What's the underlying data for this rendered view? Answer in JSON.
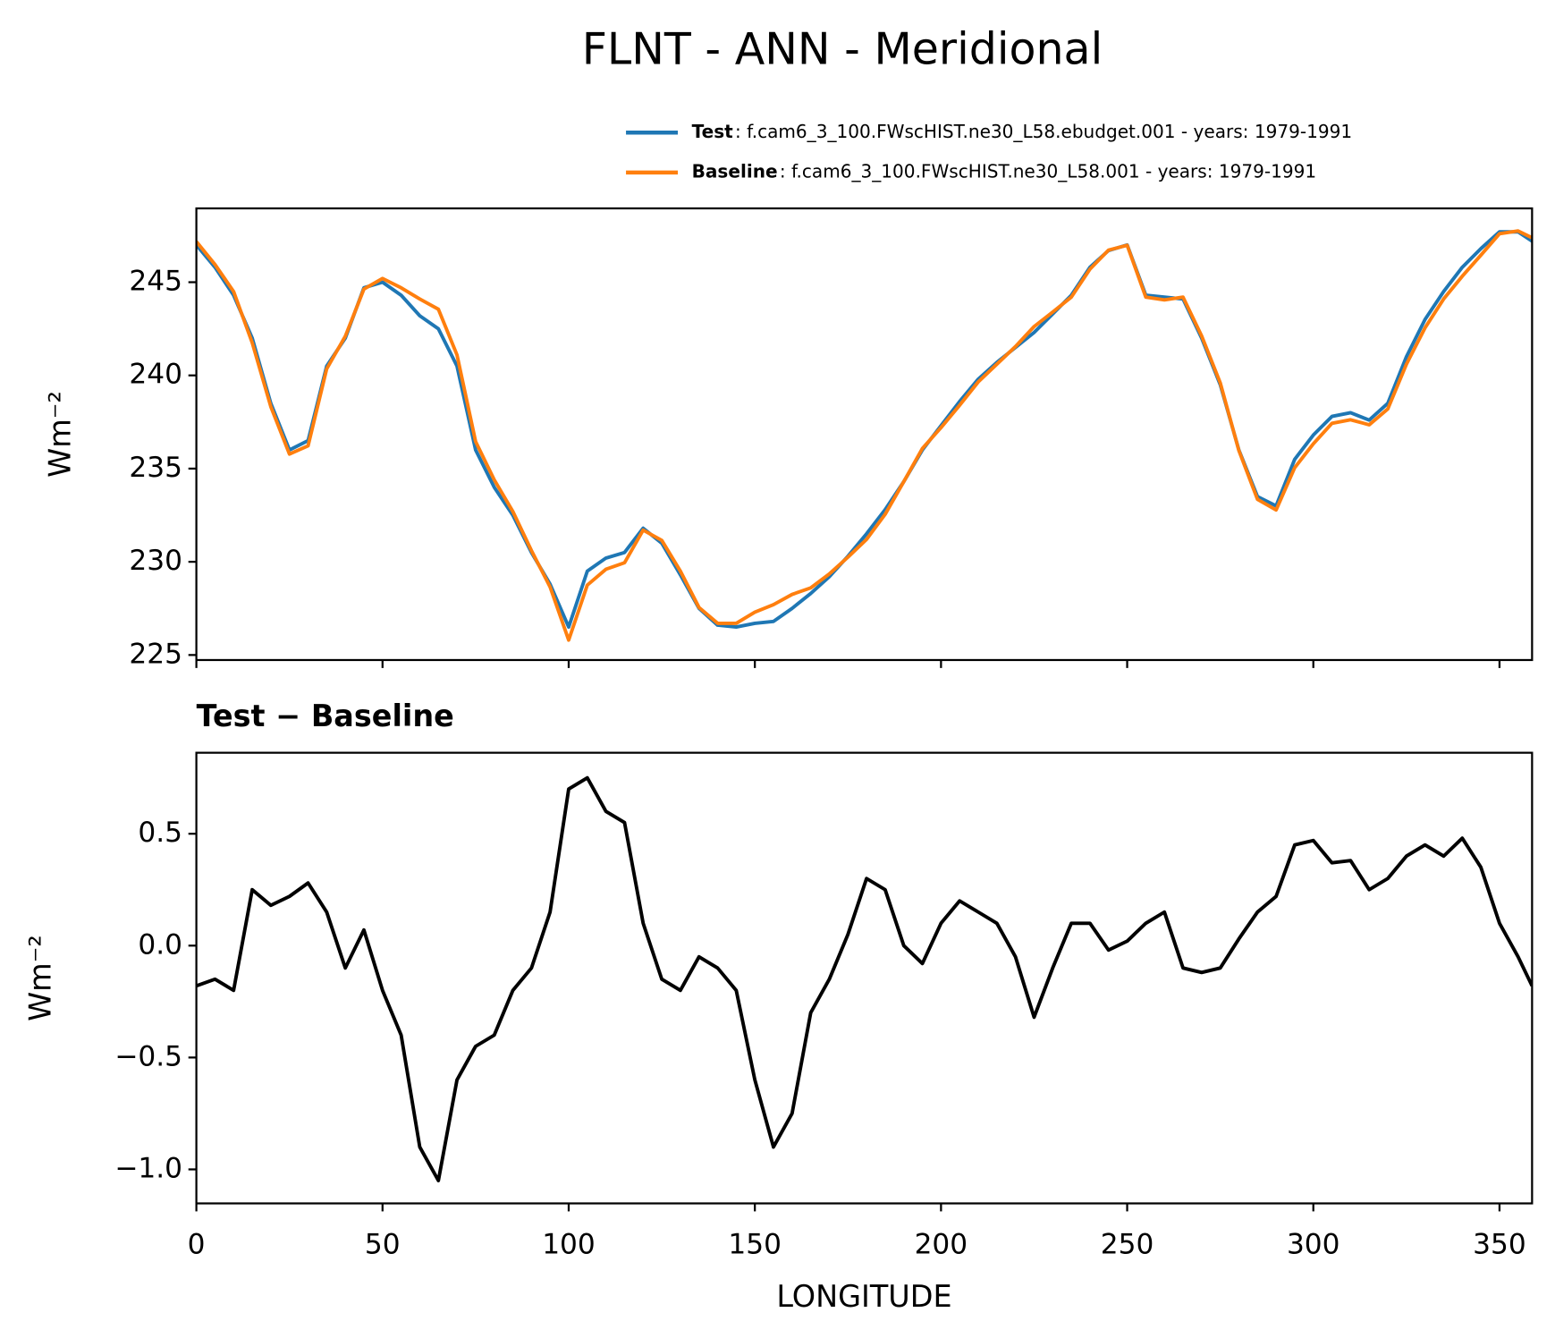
{
  "chart_data": [
    {
      "type": "line",
      "title": "FLNT - ANN - Meridional",
      "ylabel": "Wm⁻²",
      "x": [
        0,
        5,
        10,
        15,
        20,
        25,
        30,
        35,
        40,
        45,
        50,
        55,
        60,
        65,
        70,
        75,
        80,
        85,
        90,
        95,
        100,
        105,
        110,
        115,
        120,
        125,
        130,
        135,
        140,
        145,
        150,
        155,
        160,
        165,
        170,
        175,
        180,
        185,
        190,
        195,
        200,
        205,
        210,
        215,
        220,
        225,
        230,
        235,
        240,
        245,
        250,
        255,
        260,
        265,
        270,
        275,
        280,
        285,
        290,
        295,
        300,
        305,
        310,
        315,
        320,
        325,
        330,
        335,
        340,
        345,
        350,
        355,
        358.75
      ],
      "series": [
        {
          "name": "Test",
          "legend_text": ": f.cam6_3_100.FWscHIST.ne30_L58.ebudget.001 - years: 1979-1991",
          "color": "#1f77b4",
          "values": [
            247.0,
            245.8,
            244.3,
            242.0,
            238.5,
            236.0,
            236.5,
            240.5,
            242.0,
            244.7,
            245.0,
            244.3,
            243.2,
            242.5,
            240.5,
            236.0,
            234.0,
            232.5,
            230.5,
            228.8,
            226.5,
            229.5,
            230.2,
            230.5,
            231.8,
            231.0,
            229.3,
            227.5,
            226.6,
            226.5,
            226.7,
            226.8,
            227.5,
            228.3,
            229.2,
            230.3,
            231.5,
            232.8,
            234.3,
            236.0,
            237.3,
            238.6,
            239.8,
            240.7,
            241.5,
            242.3,
            243.3,
            244.3,
            245.8,
            246.7,
            247.0,
            244.3,
            244.2,
            244.1,
            242.0,
            239.5,
            236.0,
            233.5,
            233.0,
            235.5,
            236.8,
            237.8,
            238.0,
            237.6,
            238.5,
            241.0,
            243.0,
            244.5,
            245.8,
            246.8,
            247.7,
            247.7,
            247.2
          ]
        },
        {
          "name": "Baseline",
          "legend_text": ": f.cam6_3_100.FWscHIST.ne30_L58.001 - years: 1979-1991",
          "color": "#ff7f0e",
          "values": [
            247.18,
            245.95,
            244.5,
            241.75,
            238.32,
            235.78,
            236.22,
            240.35,
            242.1,
            244.63,
            245.2,
            244.7,
            244.1,
            243.55,
            241.1,
            236.45,
            234.4,
            232.7,
            230.6,
            228.65,
            225.8,
            228.75,
            229.6,
            229.95,
            231.7,
            231.15,
            229.5,
            227.55,
            226.7,
            226.7,
            227.3,
            227.7,
            228.25,
            228.6,
            229.35,
            230.25,
            231.2,
            232.55,
            234.3,
            236.08,
            237.2,
            238.4,
            239.65,
            240.6,
            241.55,
            242.62,
            243.4,
            244.2,
            245.7,
            246.72,
            246.98,
            244.2,
            244.05,
            244.2,
            242.12,
            239.6,
            235.97,
            233.35,
            232.78,
            235.05,
            236.33,
            237.43,
            237.62,
            237.35,
            238.2,
            240.6,
            242.55,
            244.1,
            245.32,
            246.45,
            247.6,
            247.75,
            247.38
          ]
        }
      ],
      "xlim": [
        0,
        358.75
      ],
      "xticks": [
        0,
        50,
        100,
        150,
        200,
        250,
        300,
        350
      ],
      "xtick_labels": false,
      "ylim": [
        224.73,
        248.96
      ],
      "yticks": [
        225,
        230,
        235,
        240,
        245
      ]
    },
    {
      "type": "line",
      "title": "Test − Baseline",
      "ylabel": "Wm⁻²",
      "xlabel": "LONGITUDE",
      "x": [
        0,
        5,
        10,
        15,
        20,
        25,
        30,
        35,
        40,
        45,
        50,
        55,
        60,
        65,
        70,
        75,
        80,
        85,
        90,
        95,
        100,
        105,
        110,
        115,
        120,
        125,
        130,
        135,
        140,
        145,
        150,
        155,
        160,
        165,
        170,
        175,
        180,
        185,
        190,
        195,
        200,
        205,
        210,
        215,
        220,
        225,
        230,
        235,
        240,
        245,
        250,
        255,
        260,
        265,
        270,
        275,
        280,
        285,
        290,
        295,
        300,
        305,
        310,
        315,
        320,
        325,
        330,
        335,
        340,
        345,
        350,
        355,
        358.75
      ],
      "series": [
        {
          "color": "#000000",
          "values": [
            -0.18,
            -0.15,
            -0.2,
            0.25,
            0.18,
            0.22,
            0.28,
            0.15,
            -0.1,
            0.07,
            -0.2,
            -0.4,
            -0.9,
            -1.05,
            -0.6,
            -0.45,
            -0.4,
            -0.2,
            -0.1,
            0.15,
            0.7,
            0.75,
            0.6,
            0.55,
            0.1,
            -0.15,
            -0.2,
            -0.05,
            -0.1,
            -0.2,
            -0.6,
            -0.9,
            -0.75,
            -0.3,
            -0.15,
            0.05,
            0.3,
            0.25,
            0.0,
            -0.08,
            0.1,
            0.2,
            0.15,
            0.1,
            -0.05,
            -0.32,
            -0.1,
            0.1,
            0.1,
            -0.02,
            0.02,
            0.1,
            0.15,
            -0.1,
            -0.12,
            -0.1,
            0.03,
            0.15,
            0.22,
            0.45,
            0.47,
            0.37,
            0.38,
            0.25,
            0.3,
            0.4,
            0.45,
            0.4,
            0.48,
            0.35,
            0.1,
            -0.05,
            -0.18
          ]
        }
      ],
      "xlim": [
        0,
        358.75
      ],
      "xticks": [
        0,
        50,
        100,
        150,
        200,
        250,
        300,
        350
      ],
      "ylim": [
        -1.152,
        0.862
      ],
      "yticks": [
        {
          "value": -1.0,
          "label": "−1.0"
        },
        {
          "value": -0.5,
          "label": "−0.5"
        },
        {
          "value": 0.0,
          "label": "0.0"
        },
        {
          "value": 0.5,
          "label": "0.5"
        }
      ]
    }
  ]
}
